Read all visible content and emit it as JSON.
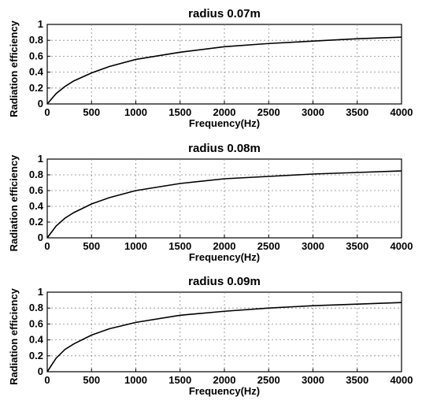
{
  "chart_data": [
    {
      "type": "line",
      "title": "radius 0.07m",
      "xlabel": "Frequency(Hz)",
      "ylabel": "Radiation efficiency",
      "xlim": [
        0,
        4000
      ],
      "ylim": [
        0,
        1
      ],
      "xticks": [
        0,
        500,
        1000,
        1500,
        2000,
        2500,
        3000,
        3500,
        4000
      ],
      "yticks": [
        0,
        0.2,
        0.4,
        0.6,
        0.8,
        1
      ],
      "grid": true,
      "series": [
        {
          "x": [
            0,
            100,
            200,
            300,
            500,
            700,
            1000,
            1500,
            2000,
            2500,
            3000,
            3500,
            4000
          ],
          "y": [
            0,
            0.13,
            0.22,
            0.29,
            0.39,
            0.47,
            0.56,
            0.65,
            0.72,
            0.76,
            0.79,
            0.82,
            0.84
          ]
        }
      ]
    },
    {
      "type": "line",
      "title": "radius 0.08m",
      "xlabel": "Frequency(Hz)",
      "ylabel": "Radiation efficiency",
      "xlim": [
        0,
        4000
      ],
      "ylim": [
        0,
        1
      ],
      "xticks": [
        0,
        500,
        1000,
        1500,
        2000,
        2500,
        3000,
        3500,
        4000
      ],
      "yticks": [
        0,
        0.2,
        0.4,
        0.6,
        0.8,
        1
      ],
      "grid": true,
      "series": [
        {
          "x": [
            0,
            100,
            200,
            300,
            500,
            700,
            1000,
            1500,
            2000,
            2500,
            3000,
            3500,
            4000
          ],
          "y": [
            0,
            0.15,
            0.25,
            0.32,
            0.43,
            0.51,
            0.6,
            0.69,
            0.75,
            0.78,
            0.81,
            0.83,
            0.85
          ]
        }
      ]
    },
    {
      "type": "line",
      "title": "radius 0.09m",
      "xlabel": "Frequency(Hz)",
      "ylabel": "Radiation efficiency",
      "xlim": [
        0,
        4000
      ],
      "ylim": [
        0,
        1
      ],
      "xticks": [
        0,
        500,
        1000,
        1500,
        2000,
        2500,
        3000,
        3500,
        4000
      ],
      "yticks": [
        0,
        0.2,
        0.4,
        0.6,
        0.8,
        1
      ],
      "grid": true,
      "series": [
        {
          "x": [
            0,
            100,
            200,
            300,
            500,
            700,
            1000,
            1500,
            2000,
            2500,
            3000,
            3500,
            4000
          ],
          "y": [
            0,
            0.17,
            0.28,
            0.35,
            0.46,
            0.54,
            0.62,
            0.71,
            0.76,
            0.8,
            0.83,
            0.85,
            0.87
          ]
        }
      ]
    }
  ]
}
